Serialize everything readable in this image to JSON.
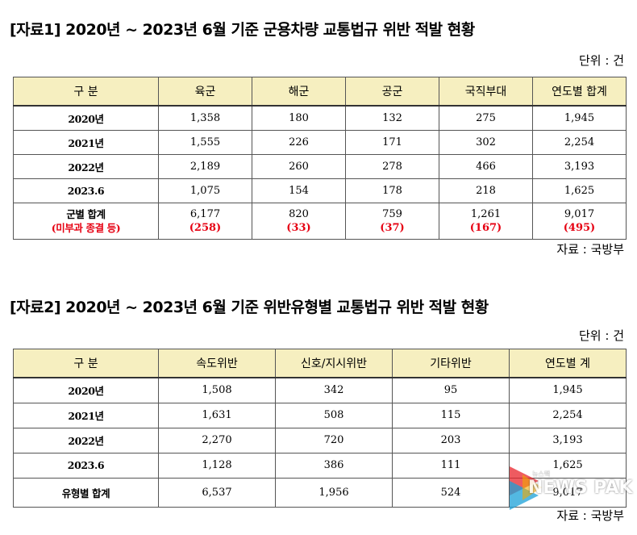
{
  "section1": {
    "title": "[자료1]  2020년 ~ 2023년 6월 기준 군용차량 교통법규 위반 적발 현황",
    "unit": "단위 : 건",
    "headers": [
      "구  분",
      "육군",
      "해군",
      "공군",
      "국직부대",
      "연도별 합계"
    ],
    "rows": [
      {
        "label": "2020년",
        "values": [
          "1,358",
          "180",
          "132",
          "275",
          "1,945"
        ]
      },
      {
        "label": "2021년",
        "values": [
          "1,555",
          "226",
          "171",
          "302",
          "2,254"
        ]
      },
      {
        "label": "2022년",
        "values": [
          "2,189",
          "260",
          "278",
          "466",
          "3,193"
        ]
      },
      {
        "label": "2023.6",
        "values": [
          "1,075",
          "154",
          "178",
          "218",
          "1,625"
        ]
      }
    ],
    "total": {
      "label": "군별 합계",
      "sublabel": "(미부과 종결 등)",
      "values": [
        "6,177",
        "820",
        "759",
        "1,261",
        "9,017"
      ],
      "subvalues": [
        "(258)",
        "(33)",
        "(37)",
        "(167)",
        "(495)"
      ]
    },
    "source": "자료 : 국방부"
  },
  "section2": {
    "title": "[자료2]  2020년 ~ 2023년 6월 기준 위반유형별 교통법규 위반 적발 현황",
    "unit": "단위 : 건",
    "headers": [
      "구  분",
      "속도위반",
      "신호/지시위반",
      "기타위반",
      "연도별 계"
    ],
    "rows": [
      {
        "label": "2020년",
        "values": [
          "1,508",
          "342",
          "95",
          "1,945"
        ]
      },
      {
        "label": "2021년",
        "values": [
          "1,631",
          "508",
          "115",
          "2,254"
        ]
      },
      {
        "label": "2022년",
        "values": [
          "2,270",
          "720",
          "203",
          "3,193"
        ]
      },
      {
        "label": "2023.6",
        "values": [
          "1,128",
          "386",
          "111",
          "1,625"
        ]
      }
    ],
    "total": {
      "label": "유형별 합계",
      "values": [
        "6,537",
        "1,956",
        "524",
        "9,017"
      ]
    },
    "source": "자료 : 국방부"
  },
  "watermark": {
    "text": "NEWS PAK",
    "small": "뉴스팩",
    "colors": [
      "#e8242b",
      "#1aa0d8",
      "#f2a900"
    ]
  }
}
